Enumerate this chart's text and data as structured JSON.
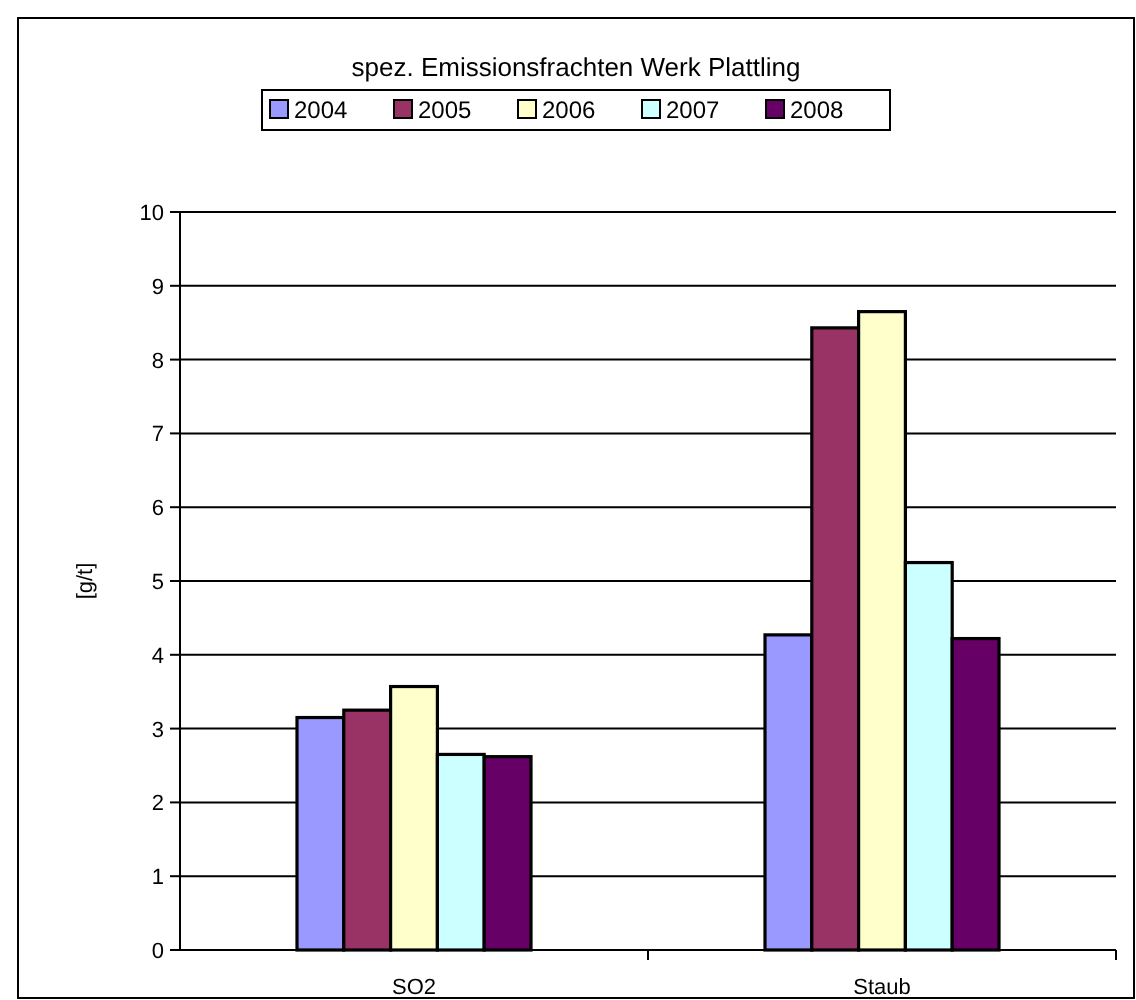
{
  "chart_data": {
    "type": "bar",
    "title": "spez. Emissionsfrachten Werk Plattling",
    "ylabel": "[g/t]",
    "categories": [
      "SO2",
      "Staub"
    ],
    "series": [
      {
        "name": "2004",
        "color": "#9999ff",
        "values": [
          3.15,
          4.27
        ]
      },
      {
        "name": "2005",
        "color": "#993366",
        "values": [
          3.25,
          8.43
        ]
      },
      {
        "name": "2006",
        "color": "#ffffcc",
        "values": [
          3.57,
          8.65
        ]
      },
      {
        "name": "2007",
        "color": "#ccffff",
        "values": [
          2.65,
          5.25
        ]
      },
      {
        "name": "2008",
        "color": "#660066",
        "values": [
          2.62,
          4.22
        ]
      }
    ],
    "ylim": [
      0,
      10
    ],
    "yticks": [
      0,
      1,
      2,
      3,
      4,
      5,
      6,
      7,
      8,
      9,
      10
    ],
    "grid": "y",
    "legend": "top"
  }
}
